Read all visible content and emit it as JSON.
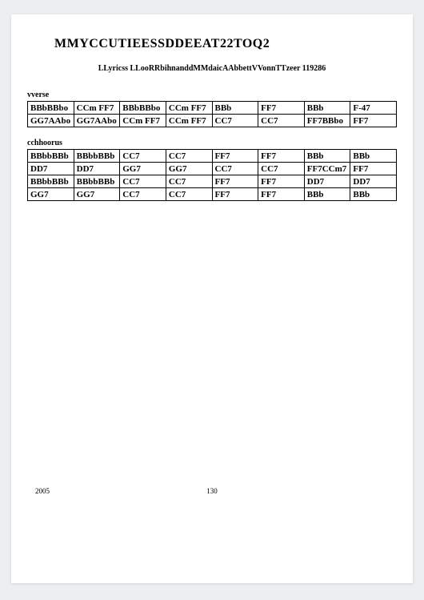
{
  "title": "MMYCCUTIEESSDDEEAT22TOQ2",
  "subtitle": "LLyricss LLooRRbihnanddMMdaicAAbbettVVonnTTzeer 119286",
  "sections": [
    {
      "label": "vverse",
      "rows": [
        [
          "BBbBBbo",
          "CCm FF7",
          "BBbBBbo",
          "CCm FF7",
          "BBb",
          "FF7",
          "BBb",
          "F-47"
        ],
        [
          "GG7AAbo",
          "GG7AAbo",
          "CCm FF7",
          "CCm FF7",
          "CC7",
          "CC7",
          "FF7BBbo",
          "FF7"
        ]
      ]
    },
    {
      "label": "cchhoorus",
      "rows": [
        [
          "BBbbBBb",
          "BBbbBBb",
          "CC7",
          "CC7",
          "FF7",
          "FF7",
          "BBb",
          "BBb"
        ],
        [
          "DD7",
          "DD7",
          "GG7",
          "GG7",
          "CC7",
          "CC7",
          "FF7CCm7",
          "FF7"
        ],
        [
          "BBbbBBb",
          "BBbbBBb",
          "CC7",
          "CC7",
          "FF7",
          "FF7",
          "DD7",
          "DD7"
        ],
        [
          "GG7",
          "GG7",
          "CC7",
          "CC7",
          "FF7",
          "FF7",
          "BBb",
          "BBb"
        ]
      ]
    }
  ],
  "footer": {
    "year": "2005",
    "page": "130"
  }
}
